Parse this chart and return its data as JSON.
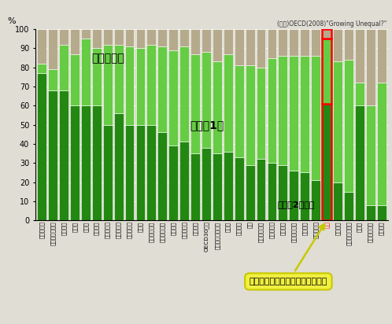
{
  "countries": [
    "ノルウェー",
    "オーストラリア",
    "イギリス",
    "ドイツ",
    "チェコ",
    "ベルギー",
    "インランド",
    "ハンガリー",
    "スロバキア",
    "スイス",
    "フィンランド",
    "オーストリア",
    "フランス",
    "デンマーク",
    "オランダ",
    "OECD30平均",
    "ニュージーランド",
    "カナダ",
    "イタリア",
    "韓国",
    "アイルランド",
    "ポーランド",
    "アメリカ",
    "スウェーデン",
    "スペイン",
    "ポルトガル",
    "日本",
    "ギリシャ",
    "ルクセンブルク",
    "トルコ",
    "アイスランド",
    "メキシコ"
  ],
  "worker2plus": [
    77,
    68,
    68,
    60,
    60,
    60,
    50,
    56,
    50,
    50,
    50,
    46,
    39,
    41,
    35,
    38,
    35,
    36,
    33,
    29,
    32,
    30,
    29,
    26,
    25,
    21,
    61,
    20,
    15,
    60,
    8,
    8
  ],
  "worker1": [
    5,
    11,
    24,
    27,
    35,
    30,
    42,
    36,
    41,
    40,
    42,
    45,
    50,
    50,
    52,
    50,
    48,
    51,
    48,
    52,
    48,
    55,
    57,
    60,
    61,
    65,
    34,
    63,
    69,
    12,
    52,
    64
  ],
  "worker0": [
    18,
    21,
    8,
    13,
    5,
    10,
    8,
    8,
    9,
    10,
    8,
    9,
    11,
    9,
    13,
    12,
    17,
    13,
    19,
    19,
    20,
    15,
    14,
    14,
    14,
    14,
    5,
    17,
    16,
    28,
    40,
    28
  ],
  "color_worker2": "#228811",
  "color_worker1": "#66cc44",
  "color_worker0": "#b5aa8c",
  "bg_color": "#e0ddd5",
  "source_text": "(出所)OECD(2008)\"Growing Unequal?\"",
  "label0": "就業者なし",
  "label1": "就業者1人",
  "label2": "就業者2人以上",
  "callout_text": "他先進国に比べ働く貧困層が多い",
  "japan_index": 26
}
